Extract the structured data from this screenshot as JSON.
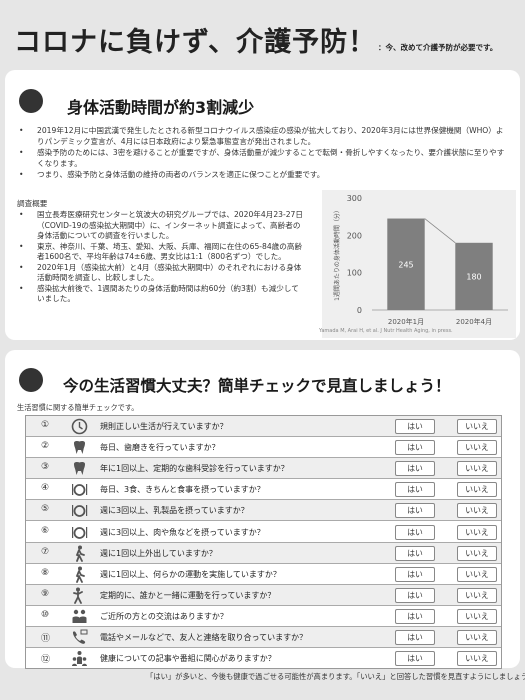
{
  "header": {
    "title": "コロナに負けず、介護予防！",
    "subtitle": "：今、改めて介護予防が必要です。"
  },
  "section1": {
    "heading": "身体活動時間が約3割減少",
    "bullets": [
      "2019年12月に中国武漢で発生したとされる新型コロナウイルス感染症の感染が拡大しており、2020年3月には世界保健機関（WHO）よりパンデミック宣言が、4月には日本政府により緊急事態宣言が発出されました。",
      "感染予防のためには、3密を避けることが重要ですが、身体活動量が減少することで転倒・骨折しやすくなったり、要介護状態に至りやすくなります。",
      "つまり、感染予防と身体活動の維持の両者のバランスを適正に保つことが重要です。"
    ],
    "survey_title": "調査概要",
    "survey": [
      "国立長寿医療研究センターと筑波大の研究グループでは、2020年4月23-27日（COVID-19の感染拡大期間中）に、インターネット調査によって、高齢者の身体活動についての調査を行いました。",
      "東京、神奈川、千葉、埼玉、愛知、大阪、兵庫、福岡に在住の65-84歳の高齢者1600名で、平均年齢は74±6歳、男女比は1:1（800名ずつ）でした。",
      "2020年1月（感染拡大前）と4月（感染拡大期間中）のそれぞれにおける身体活動時間を調査し、比較しました。",
      "感染拡大前後で、1週間あたりの身体活動時間は約60分（約3割）も減少していました。"
    ],
    "source": "Yamada M, Arai H, et al. J Nutr Health Aging, in press."
  },
  "chart_data": {
    "type": "bar",
    "categories": [
      "2020年1月",
      "2020年4月"
    ],
    "values": [
      245,
      180
    ],
    "ylabel": "1週間あたりの身体活動時間（分）",
    "ylim": [
      0,
      300
    ],
    "yticks": [
      0,
      100,
      200,
      300
    ],
    "grid": false,
    "bar_color": "#7f7f7f",
    "connector": true
  },
  "section2": {
    "heading": "今の生活習慣大丈夫？簡単チェックで見直しましょう！",
    "caption": "生活習慣に関する簡単チェックです。",
    "yes_label": "はい",
    "no_label": "いいえ",
    "items": [
      {
        "num": "①",
        "icon": "clock-icon",
        "q": "規則正しい生活が行えていますか？"
      },
      {
        "num": "②",
        "icon": "tooth-icon",
        "q": "毎日、歯磨きを行っていますか？"
      },
      {
        "num": "③",
        "icon": "tooth-icon",
        "q": "年に1回以上、定期的な歯科受診を行っていますか？"
      },
      {
        "num": "④",
        "icon": "meal-icon",
        "q": "毎日、3食、きちんと食事を摂っていますか？"
      },
      {
        "num": "⑤",
        "icon": "meal-icon",
        "q": "週に3回以上、乳製品を摂っていますか？"
      },
      {
        "num": "⑥",
        "icon": "meal-icon",
        "q": "週に3回以上、肉や魚などを摂っていますか？"
      },
      {
        "num": "⑦",
        "icon": "walking-icon",
        "q": "週に1回以上外出していますか？"
      },
      {
        "num": "⑧",
        "icon": "walking-icon",
        "q": "週に1回以上、何らかの運動を実施していますか？"
      },
      {
        "num": "⑨",
        "icon": "exercise-icon",
        "q": "定期的に、誰かと一緒に運動を行っていますか？"
      },
      {
        "num": "⑩",
        "icon": "people-icon",
        "q": "ご近所の方との交流はありますか？"
      },
      {
        "num": "⑪",
        "icon": "phone-mail-icon",
        "q": "電話やメールなどで、友人と連絡を取り合っていますか？"
      },
      {
        "num": "⑫",
        "icon": "group-icon",
        "q": "健康についての記事や番組に関心がありますか？"
      }
    ],
    "footer": "「はい」が多いと、今後も健康で過ごせる可能性が高まります。「いいえ」と回答した習慣を見直すようにしましょう。"
  }
}
